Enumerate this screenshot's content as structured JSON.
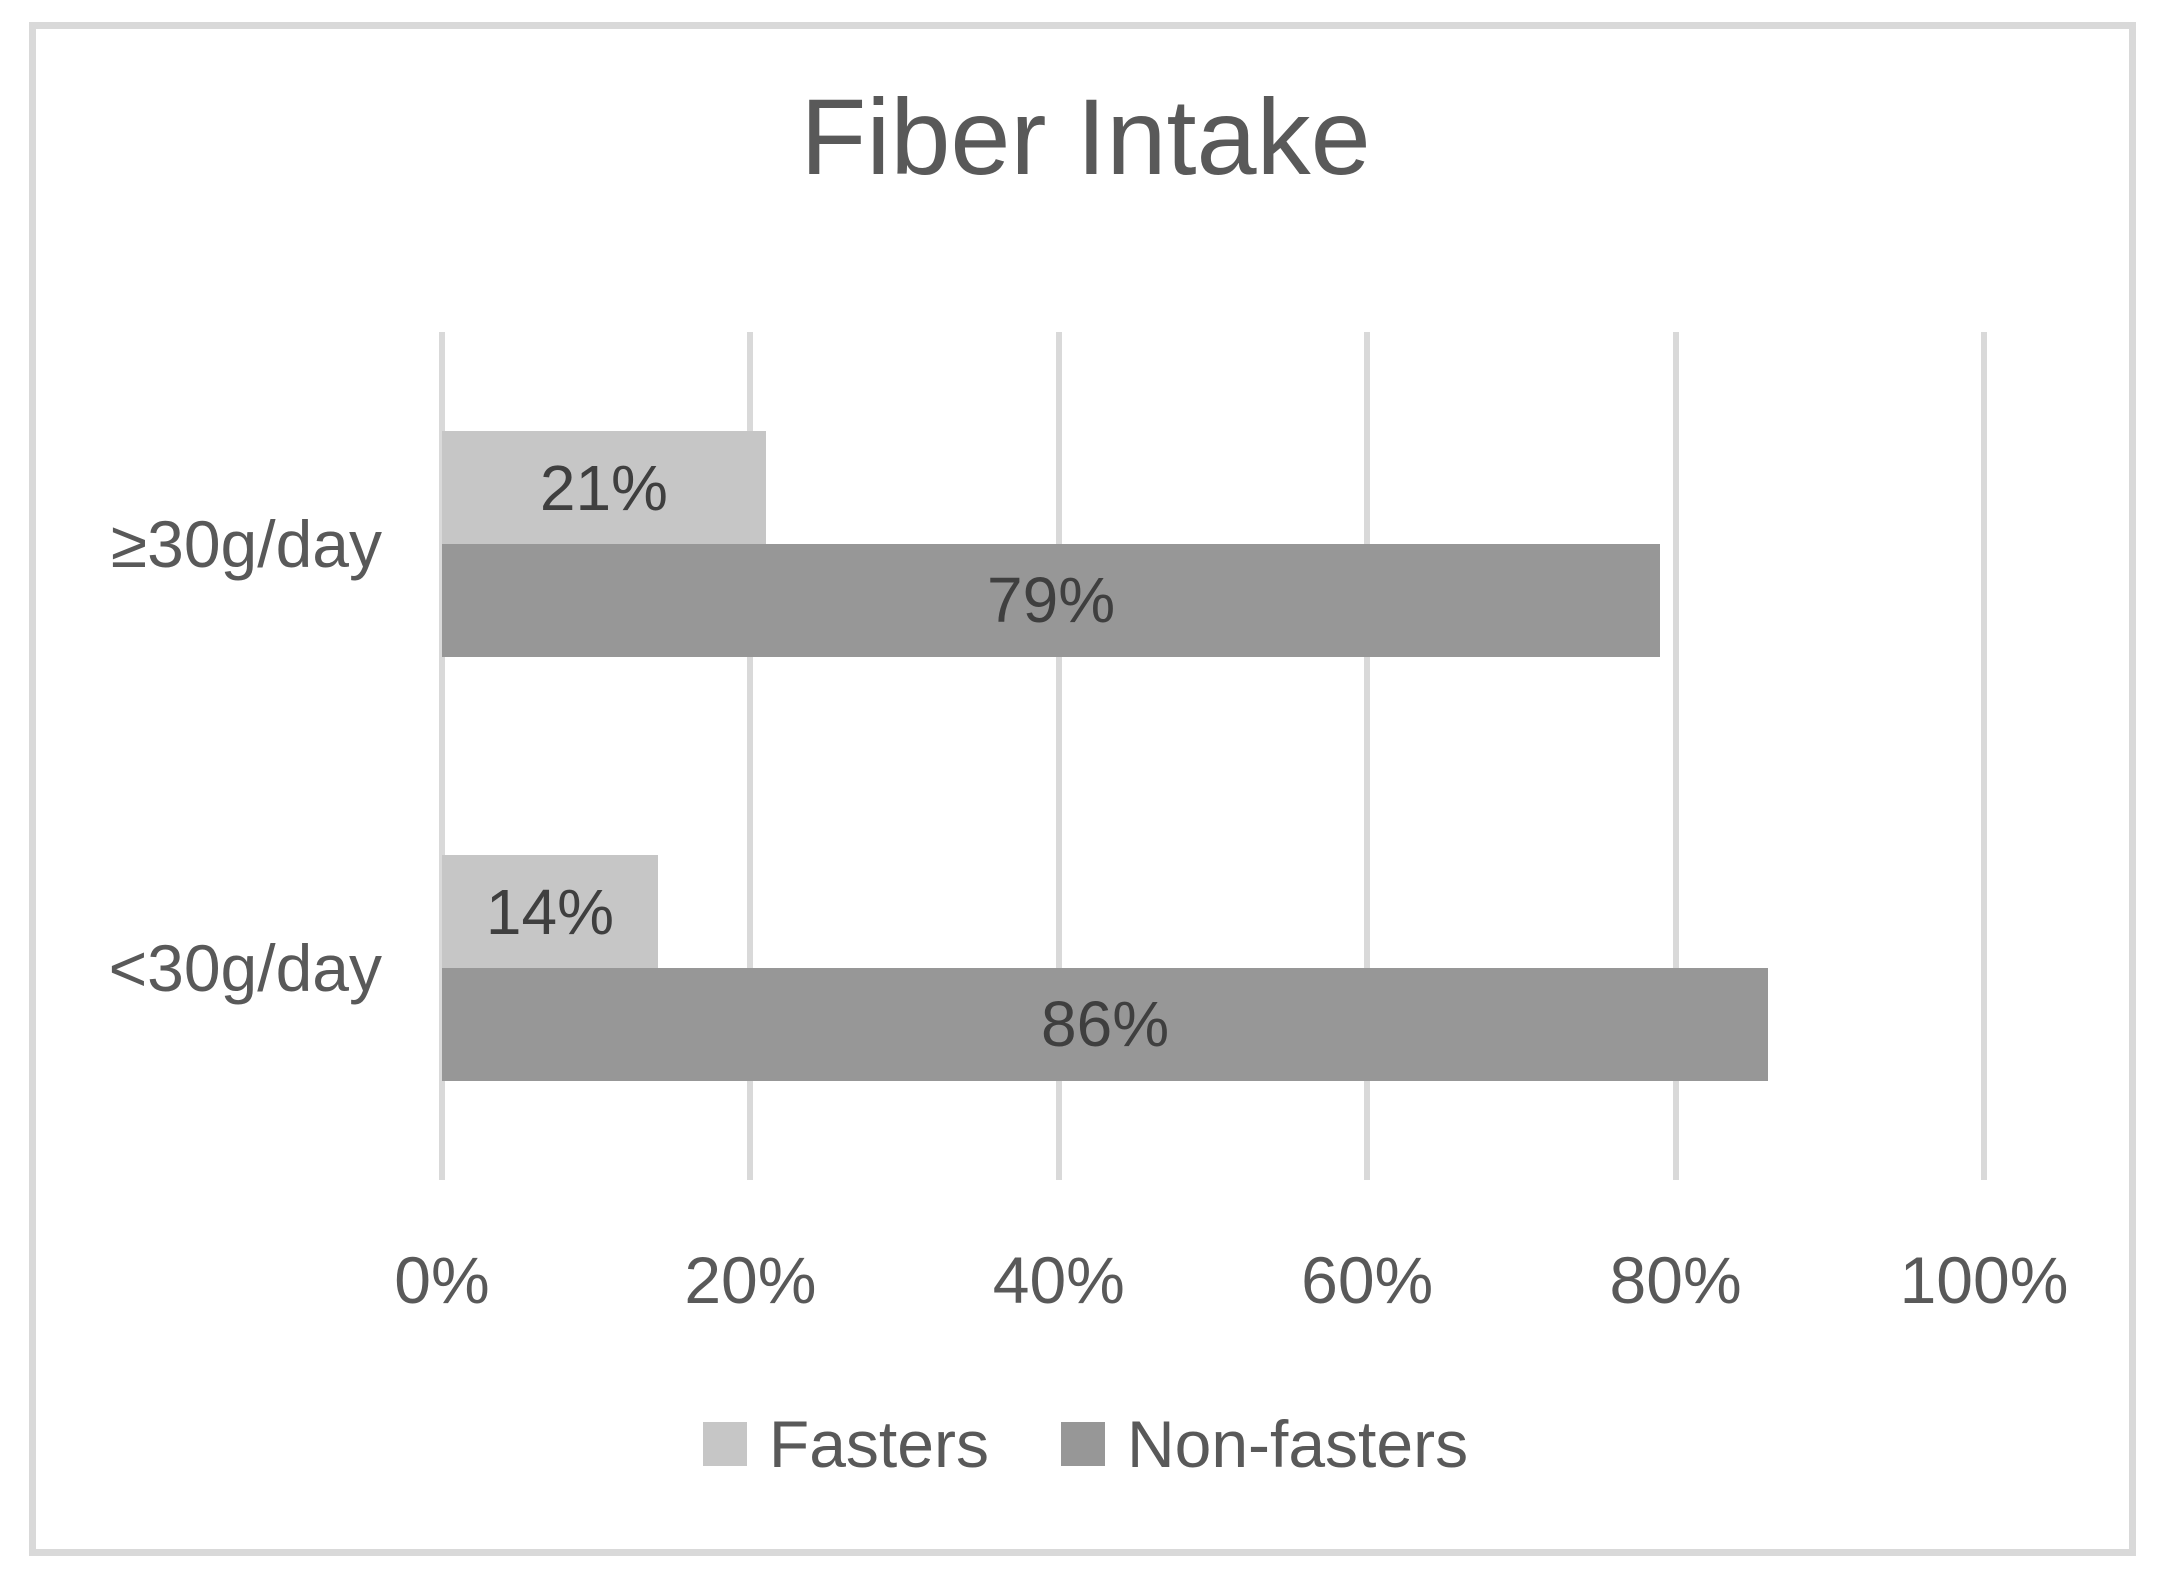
{
  "title": "Fiber Intake",
  "colors": {
    "fasters_series": "#c6c6c6",
    "non_fasters_series": "#979797",
    "gridline": "#d9d9d9",
    "frame_border": "#d9d9d9",
    "axis_text": "#595959",
    "data_label_text": "#3f3f3f",
    "background": "#ffffff"
  },
  "chart_data": {
    "type": "bar",
    "orientation": "horizontal",
    "title": "Fiber Intake",
    "categories": [
      "≥30g/day",
      "<30g/day"
    ],
    "series": [
      {
        "name": "Fasters",
        "color": "#c6c6c6",
        "values": [
          21,
          14
        ]
      },
      {
        "name": "Non-fasters",
        "color": "#979797",
        "values": [
          79,
          86
        ]
      }
    ],
    "data_labels": [
      [
        "21%",
        "14%"
      ],
      [
        "79%",
        "86%"
      ]
    ],
    "xlabel": "",
    "ylabel": "",
    "xlim": [
      0,
      100
    ],
    "x_ticks": [
      "0%",
      "20%",
      "40%",
      "60%",
      "80%",
      "100%"
    ],
    "grid": true,
    "legend_position": "bottom"
  }
}
